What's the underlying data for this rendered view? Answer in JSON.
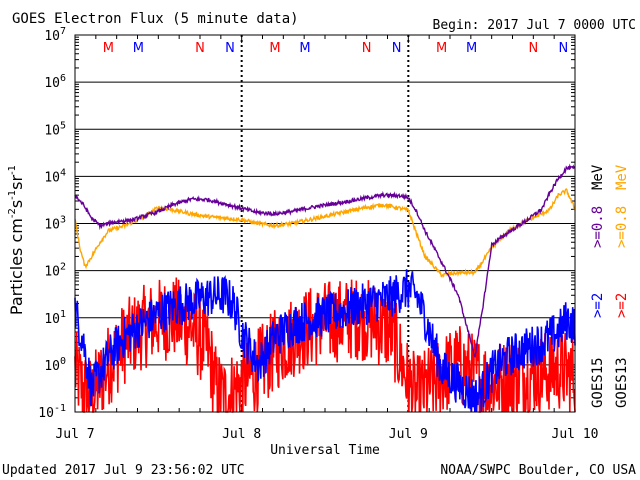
{
  "header": {
    "title": "GOES Electron Flux (5 minute data)",
    "begin": "Begin: 2017 Jul 7 0000 UTC"
  },
  "footer": {
    "updated": "Updated 2017 Jul  9 23:56:02 UTC",
    "credit": "NOAA/SWPC Boulder, CO USA"
  },
  "axes": {
    "ylabel_main": "Particles cm",
    "ylabel_sup1": "-2",
    "ylabel_mid1": "s",
    "ylabel_sup2": "-1",
    "ylabel_mid2": "sr",
    "ylabel_sup3": "-1",
    "xlabel": "Universal Time",
    "x_ticks": [
      "Jul 7",
      "Jul 8",
      "Jul 9",
      "Jul 10"
    ],
    "y_ticks": [
      {
        "base": "10",
        "exp": "-1"
      },
      {
        "base": "10",
        "exp": "0"
      },
      {
        "base": "10",
        "exp": "1"
      },
      {
        "base": "10",
        "exp": "2"
      },
      {
        "base": "10",
        "exp": "3"
      },
      {
        "base": "10",
        "exp": "4"
      },
      {
        "base": "10",
        "exp": "5"
      },
      {
        "base": "10",
        "exp": "6"
      },
      {
        "base": "10",
        "exp": "7"
      }
    ]
  },
  "right_labels": {
    "goes15": "GOES15",
    "goes13": "GOES13",
    "g15_high": ">=0.8",
    "g15_low": ">=2",
    "g13_high": ">=0.8",
    "g13_low": ">=2",
    "unit1": "MeV",
    "unit2": "MeV"
  },
  "markers": {
    "top": [
      {
        "day": 0.2,
        "label": "M",
        "color": "#ff0000"
      },
      {
        "day": 0.38,
        "label": "M",
        "color": "#0000ff"
      },
      {
        "day": 0.75,
        "label": "N",
        "color": "#ff0000"
      },
      {
        "day": 0.93,
        "label": "N",
        "color": "#0000ff"
      },
      {
        "day": 1.2,
        "label": "M",
        "color": "#ff0000"
      },
      {
        "day": 1.38,
        "label": "M",
        "color": "#0000ff"
      },
      {
        "day": 1.75,
        "label": "N",
        "color": "#ff0000"
      },
      {
        "day": 1.93,
        "label": "N",
        "color": "#0000ff"
      },
      {
        "day": 2.2,
        "label": "M",
        "color": "#ff0000"
      },
      {
        "day": 2.38,
        "label": "M",
        "color": "#0000ff"
      },
      {
        "day": 2.75,
        "label": "N",
        "color": "#ff0000"
      },
      {
        "day": 2.93,
        "label": "N",
        "color": "#0000ff"
      }
    ]
  },
  "colors": {
    "goes15_high": "#660099",
    "goes13_high": "#ffa500",
    "goes15_low": "#0000ff",
    "goes13_low": "#ff0000",
    "grid": "#000000",
    "threshold": "#000000"
  },
  "chart_data": {
    "type": "line",
    "title": "GOES Electron Flux (5 minute data)",
    "xlabel": "Universal Time",
    "ylabel": "Particles cm-2 s-1 sr-1",
    "y_scale": "log",
    "ylim": [
      0.1,
      10000000
    ],
    "xlim": [
      "2017 Jul 7 0000 UTC",
      "2017 Jul 10 0000 UTC"
    ],
    "threshold": 1000,
    "grid": true,
    "series": [
      {
        "name": "GOES15 >=0.8 MeV",
        "x_days": [
          0.0,
          0.05,
          0.1,
          0.15,
          0.2,
          0.25,
          0.35,
          0.5,
          0.6,
          0.7,
          0.8,
          0.9,
          1.0,
          1.1,
          1.2,
          1.3,
          1.45,
          1.6,
          1.75,
          1.85,
          1.95,
          2.0,
          2.05,
          2.1,
          2.2,
          2.3,
          2.4,
          2.45,
          2.5,
          2.6,
          2.7,
          2.8,
          2.85,
          2.9,
          2.95,
          3.0
        ],
        "values": [
          4000,
          2500,
          1300,
          900,
          1000,
          1100,
          1200,
          1800,
          2600,
          3300,
          3200,
          2600,
          2100,
          1700,
          1600,
          1800,
          2300,
          2800,
          3500,
          4000,
          3900,
          3500,
          1800,
          700,
          150,
          30,
          1.5,
          20,
          350,
          650,
          1100,
          2000,
          4500,
          9000,
          15000,
          15000
        ]
      },
      {
        "name": "GOES13 >=0.8 MeV",
        "x_days": [
          0.0,
          0.03,
          0.06,
          0.1,
          0.15,
          0.2,
          0.3,
          0.4,
          0.5,
          0.6,
          0.7,
          0.8,
          0.9,
          1.0,
          1.1,
          1.2,
          1.3,
          1.45,
          1.6,
          1.75,
          1.85,
          1.95,
          2.0,
          2.05,
          2.1,
          2.2,
          2.3,
          2.4,
          2.5,
          2.6,
          2.7,
          2.8,
          2.85,
          2.9,
          2.95,
          3.0
        ],
        "values": [
          1200,
          300,
          120,
          200,
          400,
          700,
          900,
          1300,
          2200,
          1900,
          1600,
          1400,
          1300,
          1200,
          1000,
          900,
          1000,
          1300,
          1700,
          2200,
          2500,
          2100,
          1900,
          600,
          200,
          80,
          90,
          90,
          300,
          700,
          1100,
          1600,
          2000,
          4000,
          5000,
          2000
        ]
      },
      {
        "name": "GOES15 >=2 MeV",
        "x_days": [
          0.0,
          0.05,
          0.1,
          0.2,
          0.3,
          0.4,
          0.5,
          0.6,
          0.7,
          0.8,
          0.9,
          0.95,
          1.0,
          1.1,
          1.2,
          1.3,
          1.4,
          1.5,
          1.6,
          1.7,
          1.8,
          1.9,
          1.95,
          2.0,
          2.05,
          2.1,
          2.2,
          2.3,
          2.4,
          2.45,
          2.5,
          2.6,
          2.7,
          2.8,
          2.9,
          2.95,
          3.0
        ],
        "values": [
          15,
          3,
          0.3,
          1.5,
          4,
          7,
          12,
          18,
          22,
          28,
          30,
          20,
          5,
          1,
          4,
          7,
          9,
          11,
          14,
          18,
          22,
          28,
          35,
          40,
          30,
          10,
          0.8,
          0.4,
          0.2,
          0.3,
          0.7,
          1.5,
          2.2,
          3,
          5,
          9,
          7
        ]
      },
      {
        "name": "GOES13 >=2 MeV",
        "x_days": [
          0.0,
          0.05,
          0.1,
          0.2,
          0.3,
          0.4,
          0.5,
          0.6,
          0.7,
          0.8,
          0.85,
          0.9,
          1.0,
          1.1,
          1.2,
          1.3,
          1.4,
          1.5,
          1.6,
          1.7,
          1.8,
          1.9,
          1.95,
          2.0,
          2.05,
          2.1,
          2.2,
          2.3,
          2.4,
          2.5,
          2.6,
          2.7,
          2.8,
          2.9,
          3.0
        ],
        "values": [
          0.8,
          0.3,
          0.2,
          1,
          3,
          6,
          9,
          10,
          6,
          2,
          0.3,
          0.2,
          0.4,
          0.8,
          2,
          4,
          6,
          8,
          9,
          10,
          8,
          5,
          1.5,
          0.4,
          0.2,
          0.3,
          0.6,
          1,
          0.6,
          0.4,
          0.5,
          0.6,
          0.7,
          0.8,
          0.6
        ]
      }
    ]
  }
}
